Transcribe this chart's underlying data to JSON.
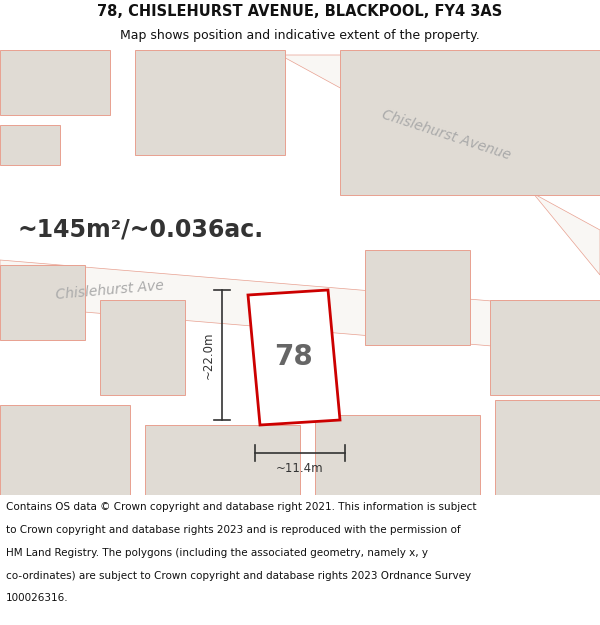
{
  "title_line1": "78, CHISLEHURST AVENUE, BLACKPOOL, FY4 3AS",
  "title_line2": "Map shows position and indicative extent of the property.",
  "area_text": "~145m²/~0.036ac.",
  "property_number": "78",
  "dim_width": "~11.4m",
  "dim_height": "~22.0m",
  "street_label1": "Chislehurst Ave",
  "street_label2": "Chislehurst Avenue",
  "footer_lines": [
    "Contains OS data © Crown copyright and database right 2021. This information is subject",
    "to Crown copyright and database rights 2023 and is reproduced with the permission of",
    "HM Land Registry. The polygons (including the associated geometry, namely x, y",
    "co-ordinates) are subject to Crown copyright and database rights 2023 Ordnance Survey",
    "100026316."
  ],
  "bg_color": "#f2efeb",
  "building_fill": "#e0dbd4",
  "building_stroke": "#e8a090",
  "road_fill": "#f9f7f4",
  "property_fill": "#ffffff",
  "property_stroke": "#cc0000",
  "dim_color": "#333333",
  "street_color": "#aaaaaa",
  "title_fontsize": 10.5,
  "subtitle_fontsize": 9,
  "area_fontsize": 17,
  "number_fontsize": 20,
  "footer_fontsize": 7.5,
  "street_fontsize": 10,
  "dim_fontsize": 8.5
}
